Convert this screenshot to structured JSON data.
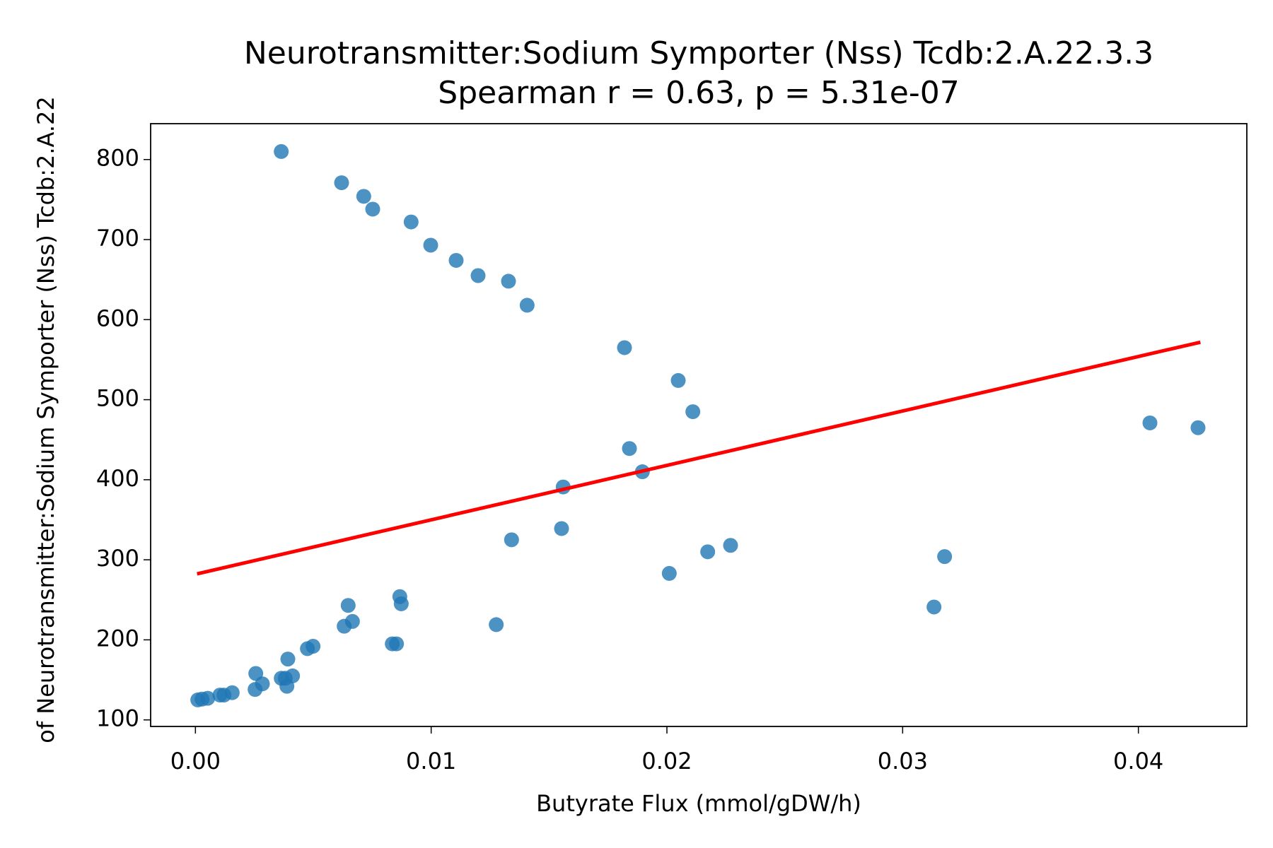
{
  "chart_data": {
    "type": "scatter",
    "title": "Neurotransmitter:Sodium Symporter (Nss) Tcdb:2.A.22.3.3",
    "subtitle": "Spearman r = 0.63, p = 5.31e-07",
    "x_label": "Butyrate Flux (mmol/gDW/h)",
    "y_label": "of Neurotransmitter:Sodium Symporter (Nss) Tcdb:2.A.22",
    "color": "#1f77b4",
    "x": [
      0.00364,
      0.0062,
      0.00714,
      0.00752,
      0.00915,
      0.00998,
      0.01106,
      0.01199,
      0.01328,
      0.01407,
      0.0182,
      0.02048,
      0.0211,
      0.04049,
      0.04253,
      0.01841,
      0.01896,
      0.0156,
      0.01553,
      0.01341,
      0.0227,
      0.02173,
      0.03178,
      0.0201,
      0.03133,
      0.01276,
      0.00867,
      0.00873,
      0.00648,
      0.00666,
      0.00631,
      0.00835,
      0.00853,
      0.00499,
      0.00475,
      0.00392,
      0.00412,
      0.00364,
      0.00381,
      0.00388,
      0.00256,
      0.00284,
      0.00253,
      0.00156,
      0.00104,
      0.00121,
      0.00052,
      0.00028,
      0.0001
    ],
    "values": [
      810,
      771,
      754,
      738,
      722,
      693,
      674,
      655,
      648,
      618,
      565,
      524,
      485,
      471,
      465,
      439,
      410,
      391,
      339,
      325,
      318,
      310,
      304,
      283,
      241,
      219,
      254,
      245,
      243,
      223,
      217,
      195,
      195,
      192,
      189,
      176,
      155,
      152,
      152,
      142,
      158,
      145,
      138,
      134,
      131,
      131,
      127,
      126,
      125
    ],
    "fit_line": {
      "color": "#ff0000",
      "x": [
        7e-05,
        0.04263
      ],
      "values": [
        282.4,
        571.8
      ]
    },
    "xlim": [
      -0.0019,
      0.0446
    ],
    "ylim": [
      91.8,
      844.8
    ],
    "xticks": [
      {
        "value": 0,
        "label": "0.00"
      },
      0.01,
      0.02,
      0.03,
      0.04
    ],
    "yticks": [
      100,
      200,
      300,
      400,
      500,
      600,
      700,
      800
    ]
  }
}
